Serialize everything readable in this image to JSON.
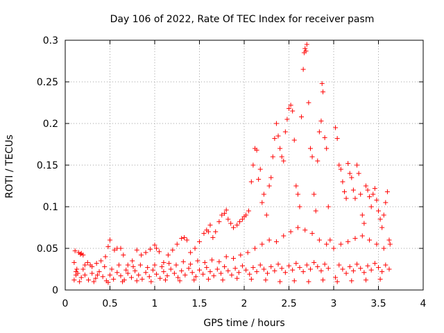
{
  "chart_data": {
    "type": "scatter",
    "title": "Day 106 of 2022, Rate Of TEC Index for receiver pasm",
    "xlabel": "GPS time / hours",
    "ylabel": "ROTI / TECUs",
    "xlim": [
      0,
      4
    ],
    "ylim": [
      0,
      0.3
    ],
    "x_ticks": [
      0,
      0.5,
      1,
      1.5,
      2,
      2.5,
      3,
      3.5,
      4
    ],
    "x_tick_labels": [
      "0",
      "0.5",
      "1",
      "1.5",
      "2",
      "2.5",
      "3",
      "3.5",
      "4"
    ],
    "y_ticks": [
      0,
      0.05,
      0.1,
      0.15,
      0.2,
      0.25,
      0.3
    ],
    "y_tick_labels": [
      "0",
      "0.05",
      "0.1",
      "0.15",
      "0.2",
      "0.25",
      "0.3"
    ],
    "grid": true,
    "marker": "+",
    "marker_color": "#ff0000",
    "series": [
      {
        "name": "ROTI",
        "points": [
          [
            0.1,
            0.033
          ],
          [
            0.11,
            0.047
          ],
          [
            0.12,
            0.018
          ],
          [
            0.13,
            0.025
          ],
          [
            0.15,
            0.045
          ],
          [
            0.17,
            0.043
          ],
          [
            0.18,
            0.044
          ],
          [
            0.2,
            0.042
          ],
          [
            0.22,
            0.03
          ],
          [
            0.25,
            0.033
          ],
          [
            0.3,
            0.028
          ],
          [
            0.35,
            0.032
          ],
          [
            0.4,
            0.035
          ],
          [
            0.45,
            0.04
          ],
          [
            0.48,
            0.052
          ],
          [
            0.5,
            0.06
          ],
          [
            0.55,
            0.048
          ],
          [
            0.58,
            0.05
          ],
          [
            0.62,
            0.05
          ],
          [
            0.65,
            0.042
          ],
          [
            0.7,
            0.03
          ],
          [
            0.75,
            0.035
          ],
          [
            0.8,
            0.048
          ],
          [
            0.85,
            0.042
          ],
          [
            0.9,
            0.045
          ],
          [
            0.95,
            0.049
          ],
          [
            1.0,
            0.054
          ],
          [
            1.02,
            0.05
          ],
          [
            1.05,
            0.046
          ],
          [
            1.1,
            0.033
          ],
          [
            1.15,
            0.042
          ],
          [
            1.2,
            0.048
          ],
          [
            1.25,
            0.055
          ],
          [
            1.3,
            0.062
          ],
          [
            1.33,
            0.063
          ],
          [
            1.36,
            0.06
          ],
          [
            1.4,
            0.045
          ],
          [
            1.45,
            0.05
          ],
          [
            1.5,
            0.058
          ],
          [
            1.55,
            0.068
          ],
          [
            1.58,
            0.072
          ],
          [
            1.6,
            0.07
          ],
          [
            1.62,
            0.078
          ],
          [
            1.65,
            0.063
          ],
          [
            1.68,
            0.07
          ],
          [
            1.72,
            0.082
          ],
          [
            1.75,
            0.09
          ],
          [
            1.78,
            0.092
          ],
          [
            1.8,
            0.096
          ],
          [
            1.82,
            0.085
          ],
          [
            1.85,
            0.08
          ],
          [
            1.88,
            0.075
          ],
          [
            1.92,
            0.078
          ],
          [
            1.95,
            0.082
          ],
          [
            1.98,
            0.085
          ],
          [
            2.0,
            0.088
          ],
          [
            2.02,
            0.09
          ],
          [
            2.05,
            0.095
          ],
          [
            2.08,
            0.13
          ],
          [
            2.1,
            0.15
          ],
          [
            2.12,
            0.17
          ],
          [
            2.14,
            0.168
          ],
          [
            2.16,
            0.133
          ],
          [
            2.18,
            0.145
          ],
          [
            2.2,
            0.105
          ],
          [
            2.22,
            0.115
          ],
          [
            2.25,
            0.09
          ],
          [
            2.28,
            0.125
          ],
          [
            2.3,
            0.135
          ],
          [
            2.32,
            0.16
          ],
          [
            2.34,
            0.182
          ],
          [
            2.36,
            0.2
          ],
          [
            2.38,
            0.185
          ],
          [
            2.4,
            0.17
          ],
          [
            2.42,
            0.16
          ],
          [
            2.44,
            0.155
          ],
          [
            2.46,
            0.19
          ],
          [
            2.48,
            0.205
          ],
          [
            2.5,
            0.218
          ],
          [
            2.52,
            0.222
          ],
          [
            2.54,
            0.215
          ],
          [
            2.56,
            0.18
          ],
          [
            2.58,
            0.125
          ],
          [
            2.6,
            0.115
          ],
          [
            2.62,
            0.1
          ],
          [
            2.64,
            0.208
          ],
          [
            2.66,
            0.265
          ],
          [
            2.67,
            0.285
          ],
          [
            2.68,
            0.29
          ],
          [
            2.69,
            0.287
          ],
          [
            2.7,
            0.295
          ],
          [
            2.72,
            0.225
          ],
          [
            2.74,
            0.17
          ],
          [
            2.76,
            0.16
          ],
          [
            2.78,
            0.115
          ],
          [
            2.8,
            0.095
          ],
          [
            2.82,
            0.155
          ],
          [
            2.84,
            0.19
          ],
          [
            2.86,
            0.203
          ],
          [
            2.87,
            0.248
          ],
          [
            2.88,
            0.238
          ],
          [
            2.9,
            0.183
          ],
          [
            2.92,
            0.17
          ],
          [
            2.94,
            0.1
          ],
          [
            2.96,
            0.06
          ],
          [
            3.0,
            0.05
          ],
          [
            3.02,
            0.195
          ],
          [
            3.04,
            0.182
          ],
          [
            3.06,
            0.15
          ],
          [
            3.08,
            0.145
          ],
          [
            3.1,
            0.13
          ],
          [
            3.12,
            0.118
          ],
          [
            3.14,
            0.11
          ],
          [
            3.16,
            0.152
          ],
          [
            3.18,
            0.14
          ],
          [
            3.2,
            0.135
          ],
          [
            3.22,
            0.12
          ],
          [
            3.24,
            0.11
          ],
          [
            3.26,
            0.15
          ],
          [
            3.28,
            0.14
          ],
          [
            3.3,
            0.115
          ],
          [
            3.32,
            0.09
          ],
          [
            3.34,
            0.08
          ],
          [
            3.36,
            0.125
          ],
          [
            3.38,
            0.12
          ],
          [
            3.4,
            0.112
          ],
          [
            3.42,
            0.1
          ],
          [
            3.44,
            0.115
          ],
          [
            3.46,
            0.122
          ],
          [
            3.48,
            0.108
          ],
          [
            3.5,
            0.095
          ],
          [
            3.52,
            0.085
          ],
          [
            3.54,
            0.075
          ],
          [
            3.56,
            0.09
          ],
          [
            3.58,
            0.105
          ],
          [
            3.6,
            0.118
          ],
          [
            3.62,
            0.06
          ],
          [
            3.63,
            0.055
          ],
          [
            0.1,
            0.012
          ],
          [
            0.14,
            0.02
          ],
          [
            0.18,
            0.015
          ],
          [
            0.22,
            0.018
          ],
          [
            0.26,
            0.012
          ],
          [
            0.3,
            0.02
          ],
          [
            0.34,
            0.014
          ],
          [
            0.38,
            0.022
          ],
          [
            0.42,
            0.016
          ],
          [
            0.46,
            0.011
          ],
          [
            0.5,
            0.018
          ],
          [
            0.54,
            0.013
          ],
          [
            0.58,
            0.021
          ],
          [
            0.62,
            0.017
          ],
          [
            0.66,
            0.012
          ],
          [
            0.7,
            0.02
          ],
          [
            0.74,
            0.015
          ],
          [
            0.78,
            0.023
          ],
          [
            0.82,
            0.018
          ],
          [
            0.86,
            0.013
          ],
          [
            0.9,
            0.021
          ],
          [
            0.94,
            0.016
          ],
          [
            0.98,
            0.024
          ],
          [
            1.02,
            0.019
          ],
          [
            1.06,
            0.014
          ],
          [
            1.1,
            0.022
          ],
          [
            1.14,
            0.017
          ],
          [
            1.18,
            0.025
          ],
          [
            1.22,
            0.02
          ],
          [
            1.26,
            0.015
          ],
          [
            1.3,
            0.023
          ],
          [
            1.34,
            0.018
          ],
          [
            1.38,
            0.026
          ],
          [
            1.42,
            0.021
          ],
          [
            1.46,
            0.016
          ],
          [
            1.5,
            0.024
          ],
          [
            1.54,
            0.019
          ],
          [
            1.58,
            0.027
          ],
          [
            1.62,
            0.022
          ],
          [
            1.66,
            0.017
          ],
          [
            1.7,
            0.025
          ],
          [
            1.74,
            0.02
          ],
          [
            1.78,
            0.028
          ],
          [
            1.82,
            0.023
          ],
          [
            1.86,
            0.018
          ],
          [
            1.9,
            0.026
          ],
          [
            1.94,
            0.021
          ],
          [
            1.98,
            0.029
          ],
          [
            2.02,
            0.024
          ],
          [
            2.06,
            0.019
          ],
          [
            2.1,
            0.027
          ],
          [
            2.14,
            0.022
          ],
          [
            2.18,
            0.03
          ],
          [
            2.22,
            0.025
          ],
          [
            2.26,
            0.02
          ],
          [
            2.3,
            0.028
          ],
          [
            2.34,
            0.023
          ],
          [
            2.38,
            0.031
          ],
          [
            2.42,
            0.026
          ],
          [
            2.46,
            0.021
          ],
          [
            2.5,
            0.029
          ],
          [
            2.54,
            0.024
          ],
          [
            2.58,
            0.032
          ],
          [
            2.62,
            0.027
          ],
          [
            2.66,
            0.022
          ],
          [
            2.7,
            0.03
          ],
          [
            2.74,
            0.025
          ],
          [
            2.78,
            0.033
          ],
          [
            2.82,
            0.028
          ],
          [
            2.86,
            0.023
          ],
          [
            2.9,
            0.031
          ],
          [
            2.94,
            0.026
          ],
          [
            3.02,
            0.015
          ],
          [
            3.06,
            0.03
          ],
          [
            3.1,
            0.025
          ],
          [
            3.14,
            0.02
          ],
          [
            3.18,
            0.028
          ],
          [
            3.22,
            0.023
          ],
          [
            3.26,
            0.031
          ],
          [
            3.3,
            0.026
          ],
          [
            3.34,
            0.021
          ],
          [
            3.38,
            0.029
          ],
          [
            3.42,
            0.024
          ],
          [
            3.46,
            0.032
          ],
          [
            3.5,
            0.027
          ],
          [
            3.54,
            0.022
          ],
          [
            3.58,
            0.03
          ],
          [
            3.62,
            0.025
          ],
          [
            0.12,
            0.022
          ],
          [
            0.2,
            0.025
          ],
          [
            0.28,
            0.03
          ],
          [
            0.36,
            0.018
          ],
          [
            0.44,
            0.028
          ],
          [
            0.52,
            0.025
          ],
          [
            0.6,
            0.03
          ],
          [
            0.68,
            0.024
          ],
          [
            0.76,
            0.028
          ],
          [
            0.84,
            0.03
          ],
          [
            0.92,
            0.027
          ],
          [
            1.0,
            0.03
          ],
          [
            1.08,
            0.028
          ],
          [
            1.16,
            0.032
          ],
          [
            1.24,
            0.03
          ],
          [
            1.32,
            0.034
          ],
          [
            1.4,
            0.031
          ],
          [
            1.48,
            0.035
          ],
          [
            1.56,
            0.033
          ],
          [
            1.64,
            0.036
          ],
          [
            1.72,
            0.034
          ],
          [
            1.8,
            0.04
          ],
          [
            1.88,
            0.038
          ],
          [
            1.96,
            0.042
          ],
          [
            2.04,
            0.045
          ],
          [
            2.12,
            0.05
          ],
          [
            2.2,
            0.055
          ],
          [
            2.28,
            0.06
          ],
          [
            2.36,
            0.058
          ],
          [
            2.44,
            0.065
          ],
          [
            2.52,
            0.07
          ],
          [
            2.6,
            0.075
          ],
          [
            2.68,
            0.072
          ],
          [
            2.76,
            0.068
          ],
          [
            2.84,
            0.06
          ],
          [
            2.92,
            0.055
          ],
          [
            3.08,
            0.055
          ],
          [
            3.16,
            0.058
          ],
          [
            3.24,
            0.062
          ],
          [
            3.32,
            0.065
          ],
          [
            3.4,
            0.06
          ],
          [
            3.48,
            0.055
          ],
          [
            3.56,
            0.05
          ],
          [
            0.16,
            0.01
          ],
          [
            0.32,
            0.01
          ],
          [
            0.48,
            0.009
          ],
          [
            0.64,
            0.01
          ],
          [
            0.8,
            0.011
          ],
          [
            0.96,
            0.01
          ],
          [
            1.12,
            0.012
          ],
          [
            1.28,
            0.011
          ],
          [
            1.44,
            0.012
          ],
          [
            1.6,
            0.013
          ],
          [
            1.76,
            0.012
          ],
          [
            1.92,
            0.014
          ],
          [
            2.08,
            0.013
          ],
          [
            2.24,
            0.012
          ],
          [
            2.4,
            0.01
          ],
          [
            2.56,
            0.011
          ],
          [
            2.72,
            0.01
          ],
          [
            2.88,
            0.012
          ],
          [
            3.04,
            0.01
          ],
          [
            3.2,
            0.011
          ],
          [
            3.36,
            0.012
          ],
          [
            3.52,
            0.013
          ]
        ]
      }
    ]
  }
}
